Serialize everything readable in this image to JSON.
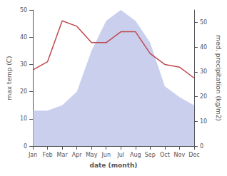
{
  "chart_data": {
    "type": "line",
    "xlabel": "date (month)",
    "ylabel": "max temp (C)",
    "y2label": "med. precipitation (kg/m2)",
    "categories": [
      "Jan",
      "Feb",
      "Mar",
      "Apr",
      "May",
      "Jun",
      "Jul",
      "Aug",
      "Sep",
      "Oct",
      "Nov",
      "Dec"
    ],
    "series": [
      {
        "type": "area",
        "color": "#b8bfe8",
        "values": [
          13,
          13,
          15,
          20,
          35,
          46,
          50,
          46,
          38,
          22,
          18,
          15
        ]
      },
      {
        "type": "line",
        "color": "#c0484d",
        "values": [
          28,
          31,
          46,
          44,
          38,
          38,
          42,
          42,
          34,
          30,
          29,
          25
        ]
      }
    ],
    "ylim": [
      0,
      50
    ],
    "yticks": [
      0,
      10,
      20,
      30,
      40,
      50
    ],
    "y2lim": [
      0,
      55
    ],
    "y2ticks": [
      0,
      10,
      20,
      30,
      40,
      50
    ],
    "grid": false
  }
}
